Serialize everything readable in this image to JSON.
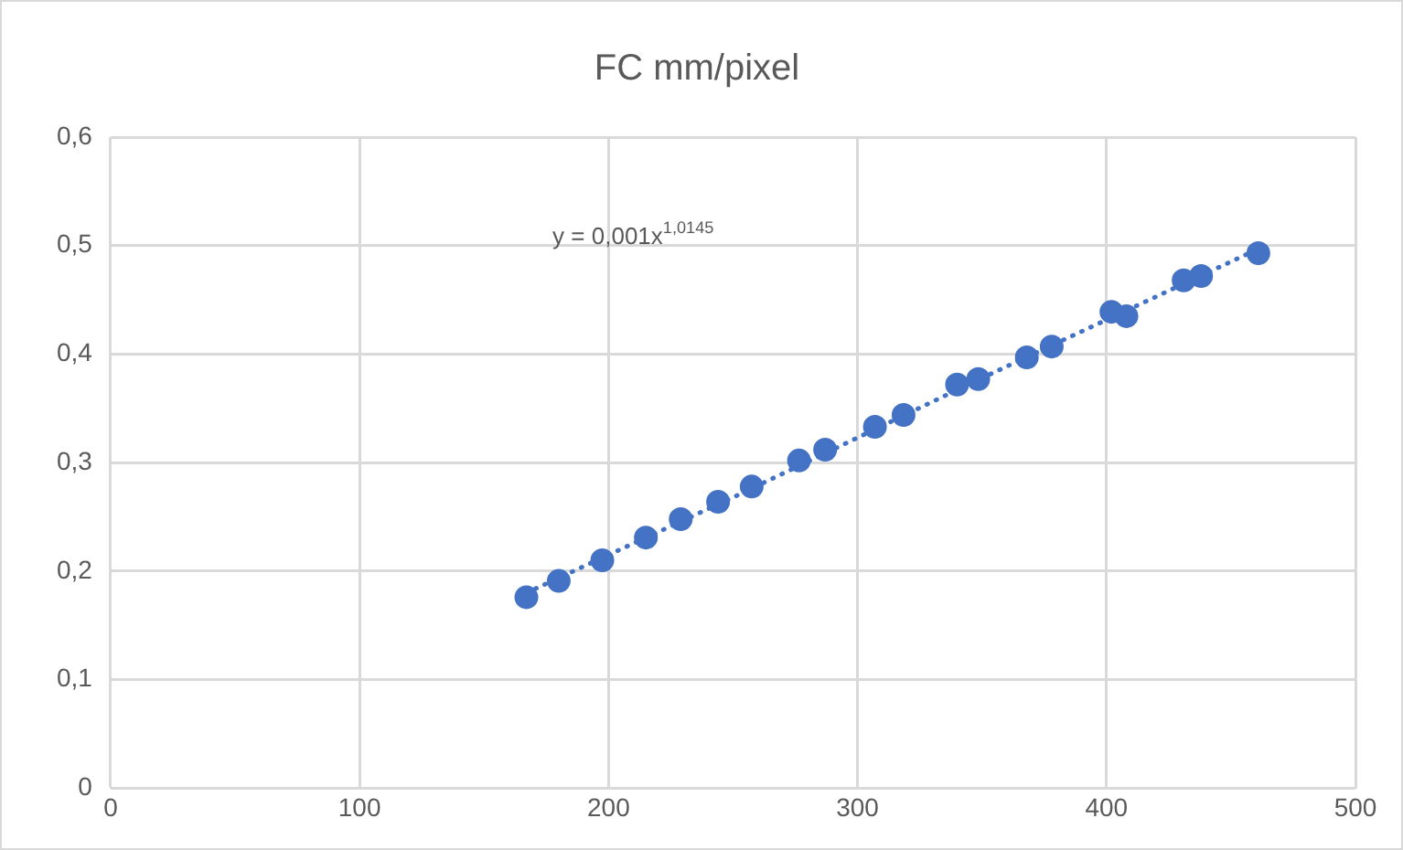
{
  "chart_data": {
    "type": "scatter",
    "title": "FC mm/pixel",
    "xlim": [
      0,
      500
    ],
    "xticks": [
      0,
      100,
      200,
      300,
      400,
      500
    ],
    "ylim": [
      0,
      0.6
    ],
    "yticks": [
      0,
      {
        "value": 0.1,
        "label": "0,1"
      },
      {
        "value": 0.2,
        "label": "0,2"
      },
      {
        "value": 0.3,
        "label": "0,3"
      },
      {
        "value": 0.4,
        "label": "0,4"
      },
      {
        "value": 0.5,
        "label": "0,5"
      },
      {
        "value": 0.6,
        "label": "0,6"
      }
    ],
    "grid": true,
    "marker": "circle",
    "annotations": [
      "y = 0,001x$^{1,0145}$"
    ],
    "series": [
      {
        "color": "#4472c4",
        "x": [
          167,
          180,
          197.5,
          215,
          229,
          244,
          257.5,
          276.5,
          287,
          307,
          318.5,
          340,
          348.5,
          368,
          378,
          402,
          408,
          431,
          438,
          461
        ],
        "values": [
          0.176,
          0.191,
          0.21,
          0.231,
          0.248,
          0.264,
          0.278,
          0.302,
          0.312,
          0.333,
          0.344,
          0.372,
          0.377,
          0.397,
          0.407,
          0.439,
          0.435,
          0.468,
          0.472,
          0.493
        ]
      },
      {
        "type": "line",
        "color": "#4472c4",
        "line_style": "dotted",
        "marker": "none",
        "x": [
          167,
          250,
          350,
          461
        ],
        "values": [
          0.18,
          0.268,
          0.378,
          0.497
        ]
      }
    ]
  }
}
